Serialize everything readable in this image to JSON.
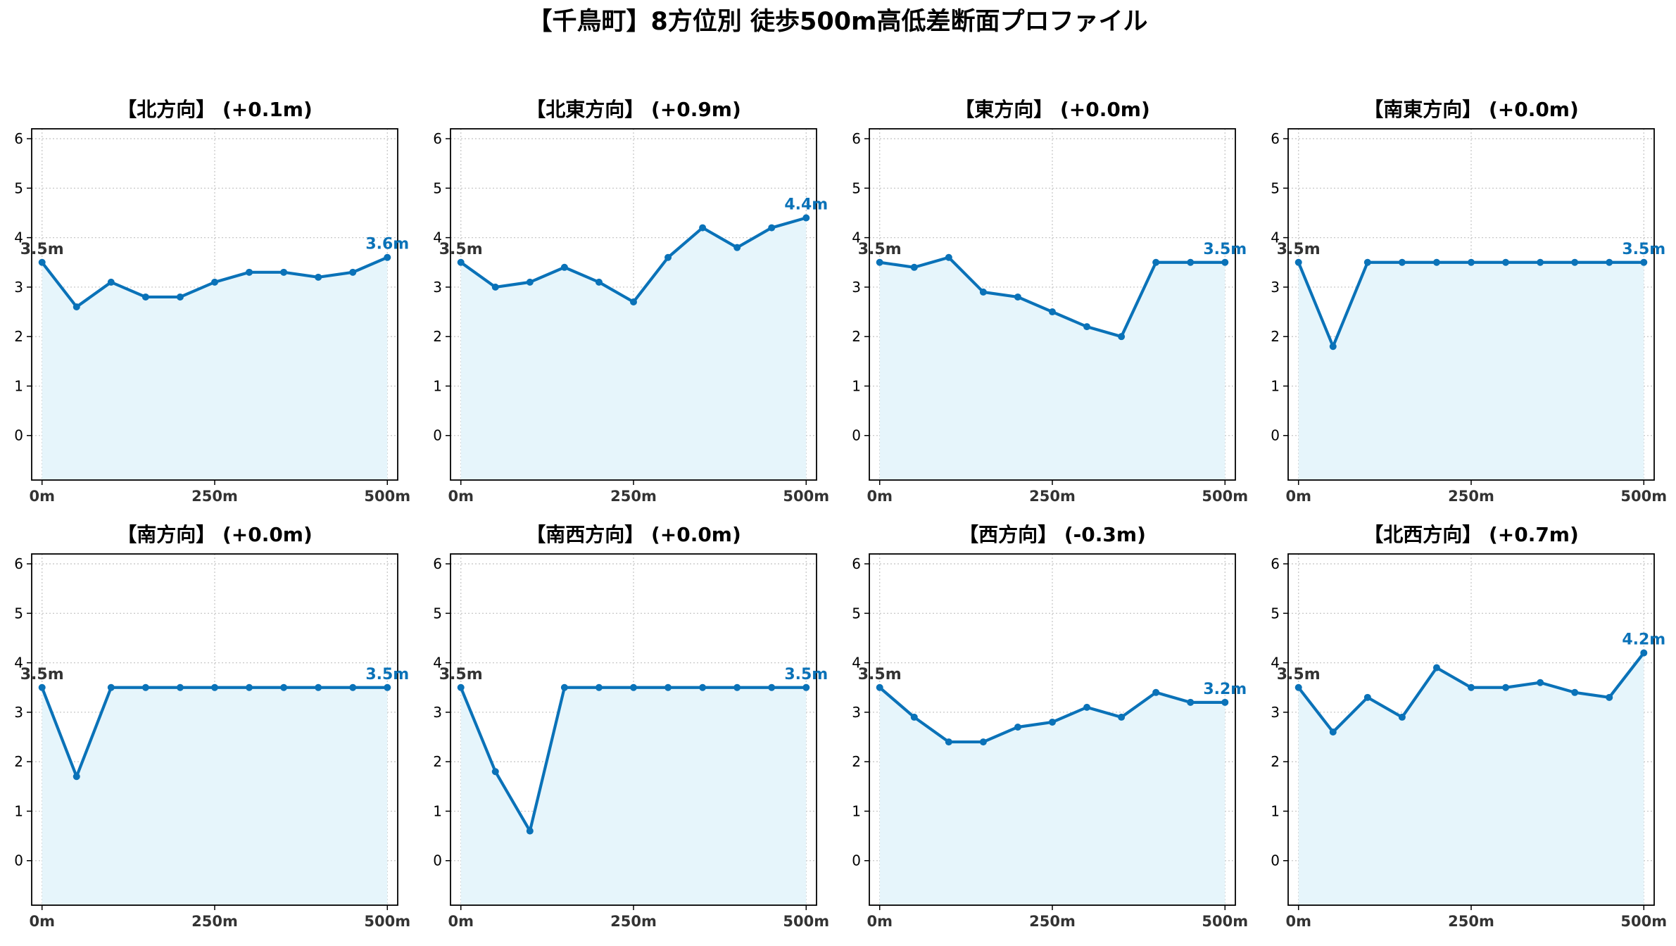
{
  "title": "【千鳥町】8方位別 徒歩500m高低差断面プロファイル",
  "colors": {
    "line": "#0a72b8",
    "fill": "#e6f5fb",
    "grid": "#c8c8c8",
    "axis": "#000000",
    "start_label": "#333333",
    "end_label": "#0a72b8"
  },
  "chart_data": [
    {
      "type": "area",
      "title": "【北方向】 (+0.1m)",
      "x": [
        0,
        50,
        100,
        150,
        200,
        250,
        300,
        350,
        400,
        450,
        500
      ],
      "y": [
        3.5,
        2.6,
        3.1,
        2.8,
        2.8,
        3.1,
        3.3,
        3.3,
        3.2,
        3.3,
        3.6
      ],
      "start_label": "3.5m",
      "end_label": "3.6m",
      "xticks": [
        0,
        250,
        500
      ],
      "xtick_labels": [
        "0m",
        "250m",
        "500m"
      ],
      "yticks": [
        0,
        1,
        2,
        3,
        4,
        5,
        6
      ],
      "ylim": [
        -0.9,
        6.2
      ],
      "xlim": [
        -15,
        515
      ],
      "grid": true
    },
    {
      "type": "area",
      "title": "【北東方向】 (+0.9m)",
      "x": [
        0,
        50,
        100,
        150,
        200,
        250,
        300,
        350,
        400,
        450,
        500
      ],
      "y": [
        3.5,
        3.0,
        3.1,
        3.4,
        3.1,
        2.7,
        3.6,
        4.2,
        3.8,
        4.2,
        4.4
      ],
      "start_label": "3.5m",
      "end_label": "4.4m",
      "xticks": [
        0,
        250,
        500
      ],
      "xtick_labels": [
        "0m",
        "250m",
        "500m"
      ],
      "yticks": [
        0,
        1,
        2,
        3,
        4,
        5,
        6
      ],
      "ylim": [
        -0.9,
        6.2
      ],
      "xlim": [
        -15,
        515
      ],
      "grid": true
    },
    {
      "type": "area",
      "title": "【東方向】 (+0.0m)",
      "x": [
        0,
        50,
        100,
        150,
        200,
        250,
        300,
        350,
        400,
        450,
        500
      ],
      "y": [
        3.5,
        3.4,
        3.6,
        2.9,
        2.8,
        2.5,
        2.2,
        2.0,
        3.5,
        3.5,
        3.5
      ],
      "start_label": "3.5m",
      "end_label": "3.5m",
      "xticks": [
        0,
        250,
        500
      ],
      "xtick_labels": [
        "0m",
        "250m",
        "500m"
      ],
      "yticks": [
        0,
        1,
        2,
        3,
        4,
        5,
        6
      ],
      "ylim": [
        -0.9,
        6.2
      ],
      "xlim": [
        -15,
        515
      ],
      "grid": true
    },
    {
      "type": "area",
      "title": "【南東方向】 (+0.0m)",
      "x": [
        0,
        50,
        100,
        150,
        200,
        250,
        300,
        350,
        400,
        450,
        500
      ],
      "y": [
        3.5,
        1.8,
        3.5,
        3.5,
        3.5,
        3.5,
        3.5,
        3.5,
        3.5,
        3.5,
        3.5
      ],
      "start_label": "3.5m",
      "end_label": "3.5m",
      "xticks": [
        0,
        250,
        500
      ],
      "xtick_labels": [
        "0m",
        "250m",
        "500m"
      ],
      "yticks": [
        0,
        1,
        2,
        3,
        4,
        5,
        6
      ],
      "ylim": [
        -0.9,
        6.2
      ],
      "xlim": [
        -15,
        515
      ],
      "grid": true
    },
    {
      "type": "area",
      "title": "【南方向】 (+0.0m)",
      "x": [
        0,
        50,
        100,
        150,
        200,
        250,
        300,
        350,
        400,
        450,
        500
      ],
      "y": [
        3.5,
        1.7,
        3.5,
        3.5,
        3.5,
        3.5,
        3.5,
        3.5,
        3.5,
        3.5,
        3.5
      ],
      "start_label": "3.5m",
      "end_label": "3.5m",
      "xticks": [
        0,
        250,
        500
      ],
      "xtick_labels": [
        "0m",
        "250m",
        "500m"
      ],
      "yticks": [
        0,
        1,
        2,
        3,
        4,
        5,
        6
      ],
      "ylim": [
        -0.9,
        6.2
      ],
      "xlim": [
        -15,
        515
      ],
      "grid": true
    },
    {
      "type": "area",
      "title": "【南西方向】 (+0.0m)",
      "x": [
        0,
        50,
        100,
        150,
        200,
        250,
        300,
        350,
        400,
        450,
        500
      ],
      "y": [
        3.5,
        1.8,
        0.6,
        3.5,
        3.5,
        3.5,
        3.5,
        3.5,
        3.5,
        3.5,
        3.5
      ],
      "start_label": "3.5m",
      "end_label": "3.5m",
      "xticks": [
        0,
        250,
        500
      ],
      "xtick_labels": [
        "0m",
        "250m",
        "500m"
      ],
      "yticks": [
        0,
        1,
        2,
        3,
        4,
        5,
        6
      ],
      "ylim": [
        -0.9,
        6.2
      ],
      "xlim": [
        -15,
        515
      ],
      "grid": true
    },
    {
      "type": "area",
      "title": "【西方向】 (-0.3m)",
      "x": [
        0,
        50,
        100,
        150,
        200,
        250,
        300,
        350,
        400,
        450,
        500
      ],
      "y": [
        3.5,
        2.9,
        2.4,
        2.4,
        2.7,
        2.8,
        3.1,
        2.9,
        3.4,
        3.2,
        3.2
      ],
      "start_label": "3.5m",
      "end_label": "3.2m",
      "xticks": [
        0,
        250,
        500
      ],
      "xtick_labels": [
        "0m",
        "250m",
        "500m"
      ],
      "yticks": [
        0,
        1,
        2,
        3,
        4,
        5,
        6
      ],
      "ylim": [
        -0.9,
        6.2
      ],
      "xlim": [
        -15,
        515
      ],
      "grid": true
    },
    {
      "type": "area",
      "title": "【北西方向】 (+0.7m)",
      "x": [
        0,
        50,
        100,
        150,
        200,
        250,
        300,
        350,
        400,
        450,
        500
      ],
      "y": [
        3.5,
        2.6,
        3.3,
        2.9,
        3.9,
        3.5,
        3.5,
        3.6,
        3.4,
        3.3,
        4.2
      ],
      "start_label": "3.5m",
      "end_label": "4.2m",
      "xticks": [
        0,
        250,
        500
      ],
      "xtick_labels": [
        "0m",
        "250m",
        "500m"
      ],
      "yticks": [
        0,
        1,
        2,
        3,
        4,
        5,
        6
      ],
      "ylim": [
        -0.9,
        6.2
      ],
      "xlim": [
        -15,
        515
      ],
      "grid": true
    }
  ]
}
